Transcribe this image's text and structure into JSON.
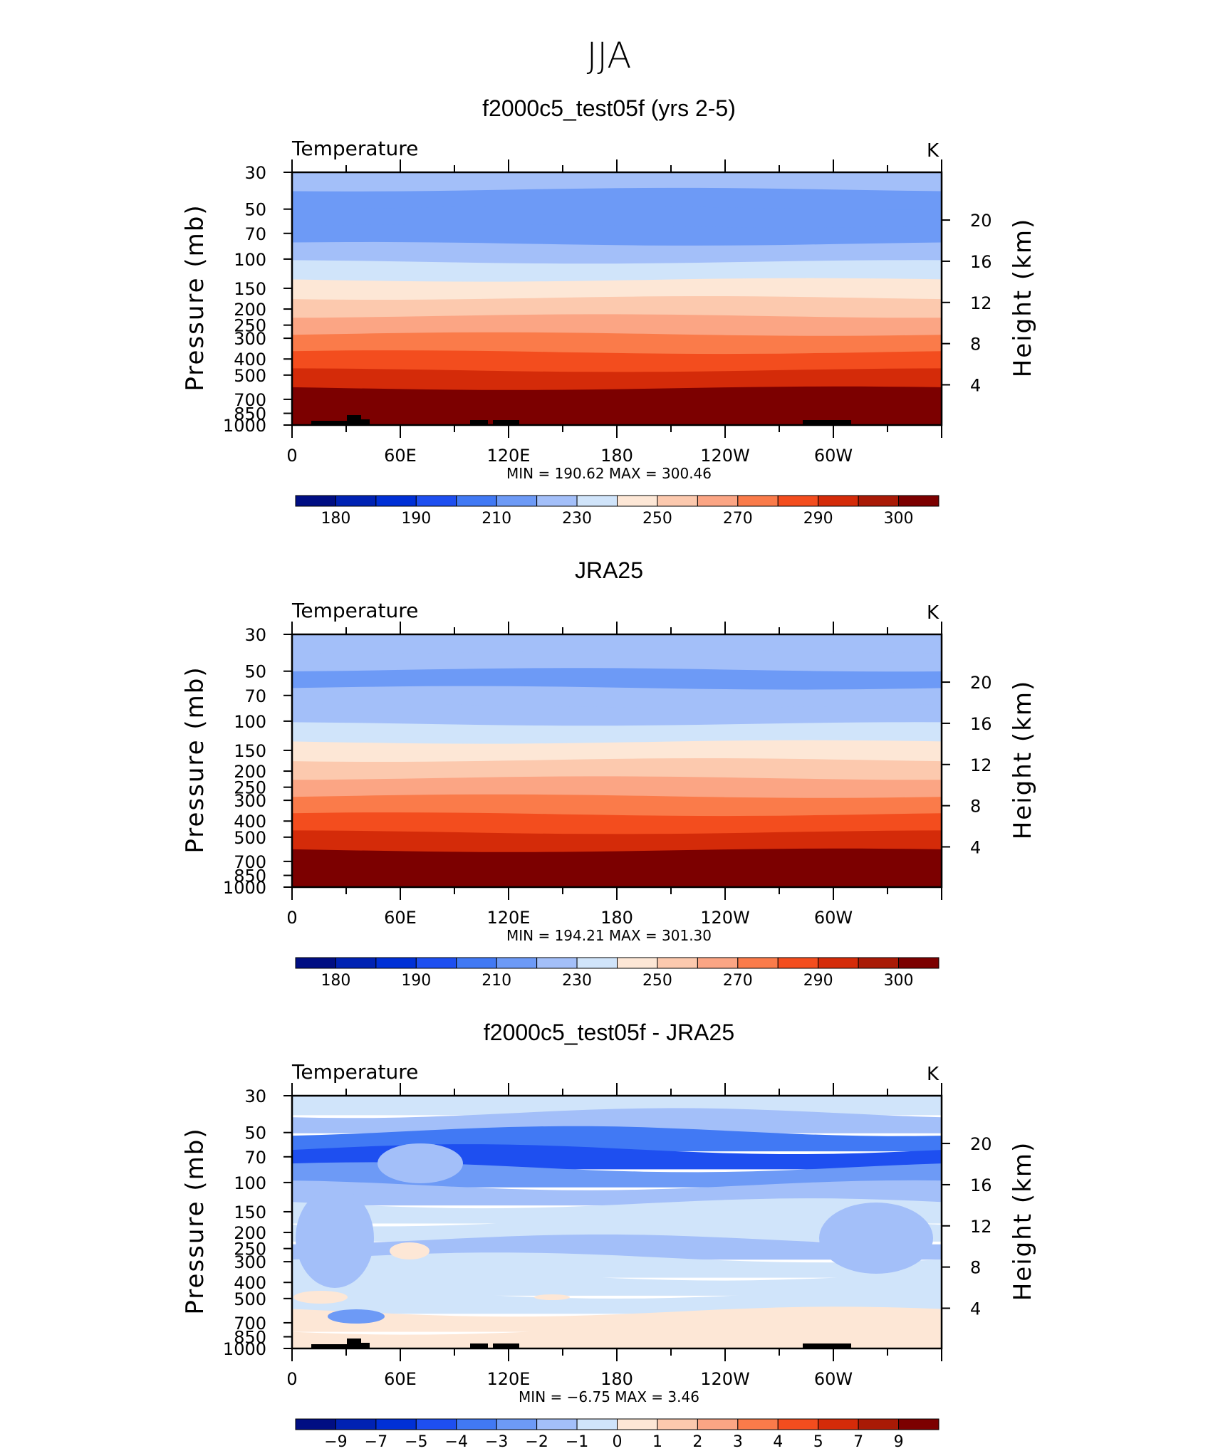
{
  "figure": {
    "title": "JJA"
  },
  "chart_data": [
    {
      "type": "heatmap",
      "title": "f2000c5_test05f (yrs 2-5)",
      "field": "Temperature",
      "units": "K",
      "ylabel": "Pressure (mb)",
      "y2label": "Height (km)",
      "xticks": [
        "0",
        "60E",
        "120E",
        "180",
        "120W",
        "60W"
      ],
      "yticks": [
        "30",
        "50",
        "70",
        "100",
        "150",
        "200",
        "250",
        "300",
        "400",
        "500",
        "700",
        "850",
        "1000"
      ],
      "y2ticks": [
        "20",
        "16",
        "12",
        "8",
        "4"
      ],
      "stats": "MIN  =  190.62   MAX  =  300.46",
      "min": 190.62,
      "max": 300.46,
      "contour_bands_top_to_bottom": [
        210,
        205,
        200,
        205,
        215,
        225,
        235,
        245,
        255,
        265,
        275,
        285,
        295,
        300
      ],
      "colorbar_ticks": [
        "180",
        "190",
        "210",
        "230",
        "250",
        "270",
        "290",
        "300"
      ]
    },
    {
      "type": "heatmap",
      "title": "JRA25",
      "field": "Temperature",
      "units": "K",
      "ylabel": "Pressure (mb)",
      "y2label": "Height (km)",
      "xticks": [
        "0",
        "60E",
        "120E",
        "180",
        "120W",
        "60W"
      ],
      "yticks": [
        "30",
        "50",
        "70",
        "100",
        "150",
        "200",
        "250",
        "300",
        "400",
        "500",
        "700",
        "850",
        "1000"
      ],
      "y2ticks": [
        "20",
        "16",
        "12",
        "8",
        "4"
      ],
      "stats": "MIN  =  194.21   MAX  =  301.30",
      "min": 194.21,
      "max": 301.3,
      "contour_bands_top_to_bottom": [
        215,
        210,
        205,
        210,
        215,
        225,
        235,
        245,
        255,
        265,
        275,
        285,
        295,
        300
      ],
      "colorbar_ticks": [
        "180",
        "190",
        "210",
        "230",
        "250",
        "270",
        "290",
        "300"
      ]
    },
    {
      "type": "heatmap",
      "title": "f2000c5_test05f - JRA25",
      "field": "Temperature",
      "units": "K",
      "ylabel": "Pressure (mb)",
      "y2label": "Height (km)",
      "xticks": [
        "0",
        "60E",
        "120E",
        "180",
        "120W",
        "60W"
      ],
      "yticks": [
        "30",
        "50",
        "70",
        "100",
        "150",
        "200",
        "250",
        "300",
        "400",
        "500",
        "700",
        "850",
        "1000"
      ],
      "y2ticks": [
        "20",
        "16",
        "12",
        "8",
        "4"
      ],
      "stats": "MIN  =   −6.75   MAX  =    3.46",
      "min": -6.75,
      "max": 3.46,
      "contour_bands_top_to_bottom": [
        -1,
        -2,
        -4,
        -5,
        -3,
        -2,
        -1,
        -1,
        -2,
        -1,
        -1,
        -1,
        0,
        0
      ],
      "colorbar_ticks": [
        "−9",
        "−7",
        "−5",
        "−4",
        "−3",
        "−2",
        "−1",
        "0",
        "1",
        "2",
        "3",
        "4",
        "5",
        "7",
        "9"
      ]
    }
  ],
  "colormap": [
    "#000e83",
    "#0022b3",
    "#0030d6",
    "#1e4ff0",
    "#4179f4",
    "#6d9af6",
    "#a3bff9",
    "#d0e4fa",
    "#fde7d6",
    "#fcc9ae",
    "#fba584",
    "#fa7b4a",
    "#f34d1e",
    "#d42b09",
    "#a91a06",
    "#7c0000"
  ]
}
